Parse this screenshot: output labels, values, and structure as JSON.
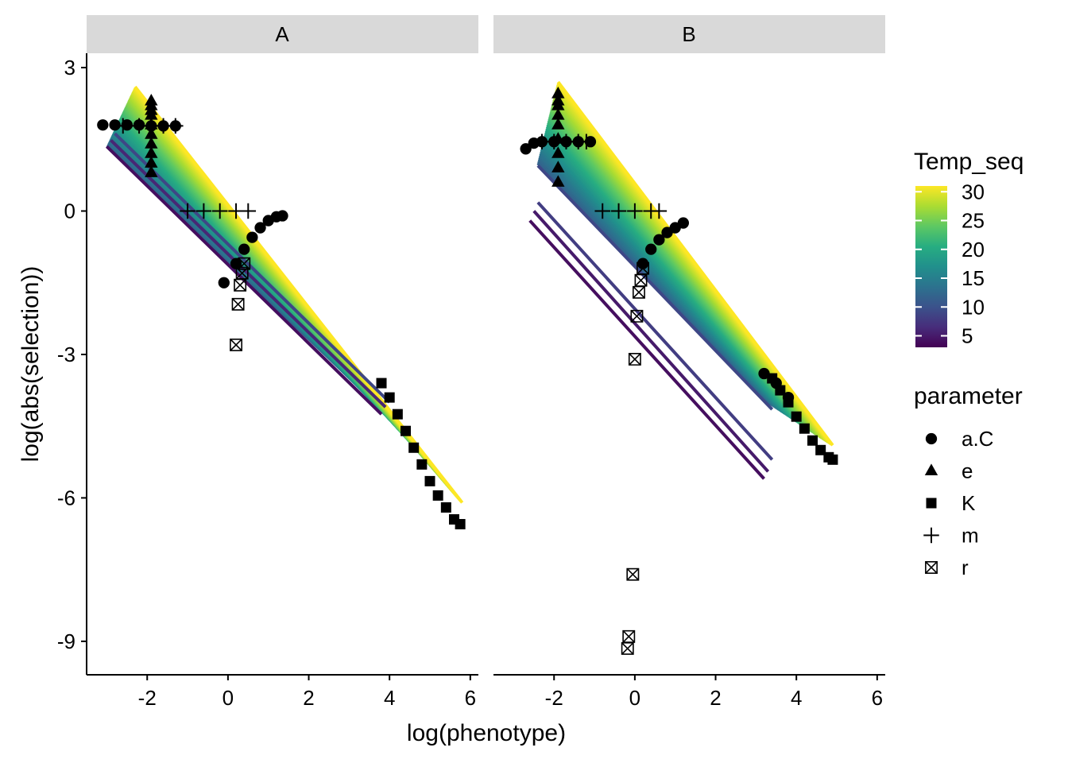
{
  "chart_data": {
    "type": "scatter",
    "xlabel": "log(phenotype)",
    "ylabel": "log(abs(selection))",
    "xlim": [
      -3.5,
      6.2
    ],
    "ylim": [
      -9.7,
      3.3
    ],
    "x_ticks": [
      -2,
      0,
      2,
      4,
      6
    ],
    "y_ticks": [
      3,
      0,
      -3,
      -6,
      -9
    ],
    "x_tick_labels": [
      "-2",
      "0",
      "2",
      "4",
      "6"
    ],
    "y_tick_labels": [
      "3",
      "0",
      "-3",
      "-6",
      "-9"
    ],
    "colorbar": {
      "title": "Temp_seq",
      "range": [
        3,
        31
      ],
      "ticks": [
        5,
        10,
        15,
        20,
        25,
        30
      ],
      "tick_labels": [
        "5",
        "10",
        "15",
        "20",
        "25",
        "30"
      ],
      "palette": [
        "#440154",
        "#472D7B",
        "#3B528B",
        "#2C728E",
        "#21908C",
        "#27AD81",
        "#5DC863",
        "#AADC32",
        "#FDE725"
      ]
    },
    "shape_legend": {
      "title": "parameter",
      "items": [
        {
          "label": "a.C",
          "shape": "circle"
        },
        {
          "label": "e",
          "shape": "triangle"
        },
        {
          "label": "K",
          "shape": "square"
        },
        {
          "label": "m",
          "shape": "plus"
        },
        {
          "label": "r",
          "shape": "boxed-x"
        }
      ]
    },
    "panels": [
      {
        "name": "A",
        "fan": {
          "from": [
            [
              -3.0,
              1.35
            ],
            [
              -2.3,
              2.6
            ]
          ],
          "to": [
            [
              3.9,
              -4.2
            ],
            [
              5.8,
              -6.1
            ]
          ]
        },
        "lines": [
          {
            "temp": 4,
            "x": [
              -3.0,
              3.8
            ],
            "y": [
              1.35,
              -4.25
            ]
          },
          {
            "temp": 6,
            "x": [
              -2.9,
              3.9
            ],
            "y": [
              1.48,
              -4.1
            ]
          },
          {
            "temp": 9,
            "x": [
              -2.8,
              4.0
            ],
            "y": [
              1.62,
              -4.0
            ]
          }
        ],
        "series": [
          {
            "parameter": "a.C",
            "x": [
              -3.1,
              -2.8,
              -2.5,
              -2.2,
              -1.9,
              -1.6,
              -1.3,
              -0.1,
              0.2,
              0.4,
              0.6,
              0.8,
              1.0,
              1.2,
              1.35
            ],
            "y": [
              1.8,
              1.8,
              1.8,
              1.8,
              1.78,
              1.78,
              1.78,
              -1.5,
              -1.1,
              -0.8,
              -0.55,
              -0.35,
              -0.2,
              -0.12,
              -0.1
            ]
          },
          {
            "parameter": "e",
            "x": [
              -1.9,
              -1.9,
              -1.9,
              -1.9,
              -1.9,
              -1.9,
              -1.9,
              -1.9,
              -1.9,
              -1.9
            ],
            "y": [
              0.8,
              1.0,
              1.2,
              1.4,
              1.6,
              1.8,
              2.0,
              2.1,
              2.2,
              2.3
            ]
          },
          {
            "parameter": "K",
            "x": [
              3.8,
              4.0,
              4.2,
              4.4,
              4.6,
              4.8,
              5.0,
              5.2,
              5.4,
              5.6,
              5.75
            ],
            "y": [
              -3.6,
              -3.9,
              -4.25,
              -4.6,
              -4.95,
              -5.3,
              -5.65,
              -5.95,
              -6.2,
              -6.45,
              -6.55
            ]
          },
          {
            "parameter": "m",
            "x": [
              -2.6,
              -2.2,
              -1.9,
              -1.6,
              -1.3,
              -1.0,
              -0.6,
              -0.2,
              0.2,
              0.5
            ],
            "y": [
              1.78,
              1.78,
              1.78,
              1.78,
              1.78,
              0.0,
              0.0,
              0.0,
              0.0,
              0.0
            ]
          },
          {
            "parameter": "r",
            "x": [
              0.2,
              0.25,
              0.3,
              0.35,
              0.4
            ],
            "y": [
              -2.8,
              -1.95,
              -1.55,
              -1.3,
              -1.1
            ]
          }
        ]
      },
      {
        "name": "B",
        "fan": {
          "from": [
            [
              -2.4,
              1.0
            ],
            [
              -1.9,
              2.7
            ]
          ],
          "to": [
            [
              3.3,
              -4.0
            ],
            [
              4.9,
              -4.9
            ]
          ]
        },
        "lines": [
          {
            "temp": 4,
            "x": [
              -2.6,
              3.2
            ],
            "y": [
              -0.2,
              -5.6
            ]
          },
          {
            "temp": 5,
            "x": [
              -2.5,
              3.3
            ],
            "y": [
              0.0,
              -5.45
            ]
          },
          {
            "temp": 8,
            "x": [
              -2.4,
              3.4
            ],
            "y": [
              0.18,
              -5.2
            ]
          },
          {
            "temp": 9,
            "x": [
              -2.4,
              3.4
            ],
            "y": [
              0.95,
              -4.15
            ]
          }
        ],
        "series": [
          {
            "parameter": "a.C",
            "x": [
              -2.7,
              -2.5,
              -2.3,
              -2.0,
              -1.7,
              -1.4,
              -1.1,
              0.2,
              0.4,
              0.6,
              0.8,
              1.0,
              1.2,
              3.2,
              3.5,
              3.8
            ],
            "y": [
              1.3,
              1.42,
              1.45,
              1.45,
              1.45,
              1.45,
              1.45,
              -1.1,
              -0.8,
              -0.6,
              -0.45,
              -0.35,
              -0.25,
              -3.4,
              -3.6,
              -3.9
            ]
          },
          {
            "parameter": "e",
            "x": [
              -1.9,
              -1.9,
              -1.9,
              -1.9,
              -1.9,
              -1.9,
              -1.9,
              -1.9,
              -1.9
            ],
            "y": [
              0.6,
              0.9,
              1.2,
              1.5,
              1.8,
              2.0,
              2.2,
              2.3,
              2.45
            ]
          },
          {
            "parameter": "K",
            "x": [
              3.4,
              3.6,
              3.8,
              4.0,
              4.2,
              4.4,
              4.6,
              4.8,
              4.9
            ],
            "y": [
              -3.5,
              -3.75,
              -4.0,
              -4.3,
              -4.55,
              -4.8,
              -5.0,
              -5.15,
              -5.2
            ]
          },
          {
            "parameter": "m",
            "x": [
              -2.3,
              -2.0,
              -1.7,
              -1.4,
              -1.2,
              -0.8,
              -0.4,
              0.0,
              0.4,
              0.6
            ],
            "y": [
              1.45,
              1.45,
              1.45,
              1.45,
              1.45,
              0.0,
              0.0,
              0.0,
              0.0,
              0.0
            ]
          },
          {
            "parameter": "r",
            "x": [
              0.0,
              0.05,
              0.1,
              0.15,
              0.2,
              -0.05,
              -0.15,
              -0.18
            ],
            "y": [
              -3.1,
              -2.2,
              -1.7,
              -1.45,
              -1.2,
              -7.6,
              -8.9,
              -9.15
            ]
          }
        ]
      }
    ]
  }
}
